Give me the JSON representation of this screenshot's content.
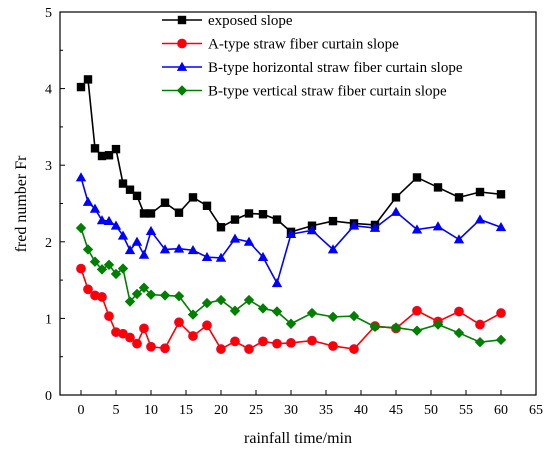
{
  "chart_data": {
    "type": "line",
    "title": "",
    "xlabel": "rainfall time/min",
    "ylabel": "fred number Fr",
    "xlim": [
      -3,
      65
    ],
    "ylim": [
      0,
      5
    ],
    "xticks": [
      0,
      5,
      10,
      15,
      20,
      25,
      30,
      35,
      40,
      45,
      50,
      55,
      60,
      65
    ],
    "yticks": [
      0,
      1,
      2,
      3,
      4,
      5
    ],
    "grid": false,
    "legend_position": "top-right",
    "series": [
      {
        "name": "exposed slope",
        "color": "#000000",
        "marker": "square",
        "x": [
          0,
          1,
          2,
          3,
          4,
          5,
          6,
          7,
          8,
          9,
          10,
          12,
          14,
          16,
          18,
          20,
          22,
          24,
          26,
          28,
          30,
          33,
          36,
          39,
          42,
          45,
          48,
          51,
          54,
          57,
          60
        ],
        "y": [
          4.02,
          4.12,
          3.22,
          3.12,
          3.13,
          3.21,
          2.76,
          2.68,
          2.6,
          2.37,
          2.37,
          2.51,
          2.38,
          2.58,
          2.47,
          2.19,
          2.29,
          2.37,
          2.36,
          2.29,
          2.13,
          2.21,
          2.27,
          2.24,
          2.22,
          2.58,
          2.84,
          2.71,
          2.58,
          2.65,
          2.62
        ]
      },
      {
        "name": "A-type straw fiber curtain slope",
        "color": "#ff0000",
        "marker": "circle",
        "x": [
          0,
          1,
          2,
          3,
          4,
          5,
          6,
          7,
          8,
          9,
          10,
          12,
          14,
          16,
          18,
          20,
          22,
          24,
          26,
          28,
          30,
          33,
          36,
          39,
          42,
          45,
          48,
          51,
          54,
          57,
          60
        ],
        "y": [
          1.65,
          1.38,
          1.3,
          1.28,
          1.03,
          0.82,
          0.8,
          0.75,
          0.67,
          0.87,
          0.63,
          0.61,
          0.95,
          0.77,
          0.91,
          0.6,
          0.7,
          0.6,
          0.7,
          0.67,
          0.68,
          0.71,
          0.64,
          0.6,
          0.9,
          0.87,
          1.1,
          0.96,
          1.09,
          0.92,
          1.07
        ]
      },
      {
        "name": "B-type horizontal straw fiber curtain slope",
        "color": "#0000ff",
        "marker": "triangle",
        "x": [
          0,
          1,
          2,
          3,
          4,
          5,
          6,
          7,
          8,
          9,
          10,
          12,
          14,
          16,
          18,
          20,
          22,
          24,
          26,
          28,
          30,
          33,
          36,
          39,
          42,
          45,
          48,
          51,
          54,
          57,
          60
        ],
        "y": [
          2.84,
          2.52,
          2.43,
          2.28,
          2.27,
          2.21,
          2.08,
          1.89,
          2.0,
          1.83,
          2.14,
          1.9,
          1.91,
          1.89,
          1.8,
          1.79,
          2.04,
          2.0,
          1.8,
          1.46,
          2.1,
          2.15,
          1.9,
          2.21,
          2.18,
          2.39,
          2.16,
          2.2,
          2.03,
          2.29,
          2.19
        ]
      },
      {
        "name": "B-type vertical straw fiber curtain slope",
        "color": "#008000",
        "marker": "diamond",
        "x": [
          0,
          1,
          2,
          3,
          4,
          5,
          6,
          7,
          8,
          9,
          10,
          12,
          14,
          16,
          18,
          20,
          22,
          24,
          26,
          28,
          30,
          33,
          36,
          39,
          42,
          45,
          48,
          51,
          54,
          57,
          60
        ],
        "y": [
          2.18,
          1.9,
          1.74,
          1.64,
          1.7,
          1.58,
          1.65,
          1.22,
          1.32,
          1.4,
          1.31,
          1.3,
          1.29,
          1.05,
          1.2,
          1.24,
          1.1,
          1.24,
          1.13,
          1.09,
          0.93,
          1.07,
          1.02,
          1.03,
          0.89,
          0.88,
          0.84,
          0.92,
          0.81,
          0.69,
          0.72
        ]
      }
    ]
  }
}
